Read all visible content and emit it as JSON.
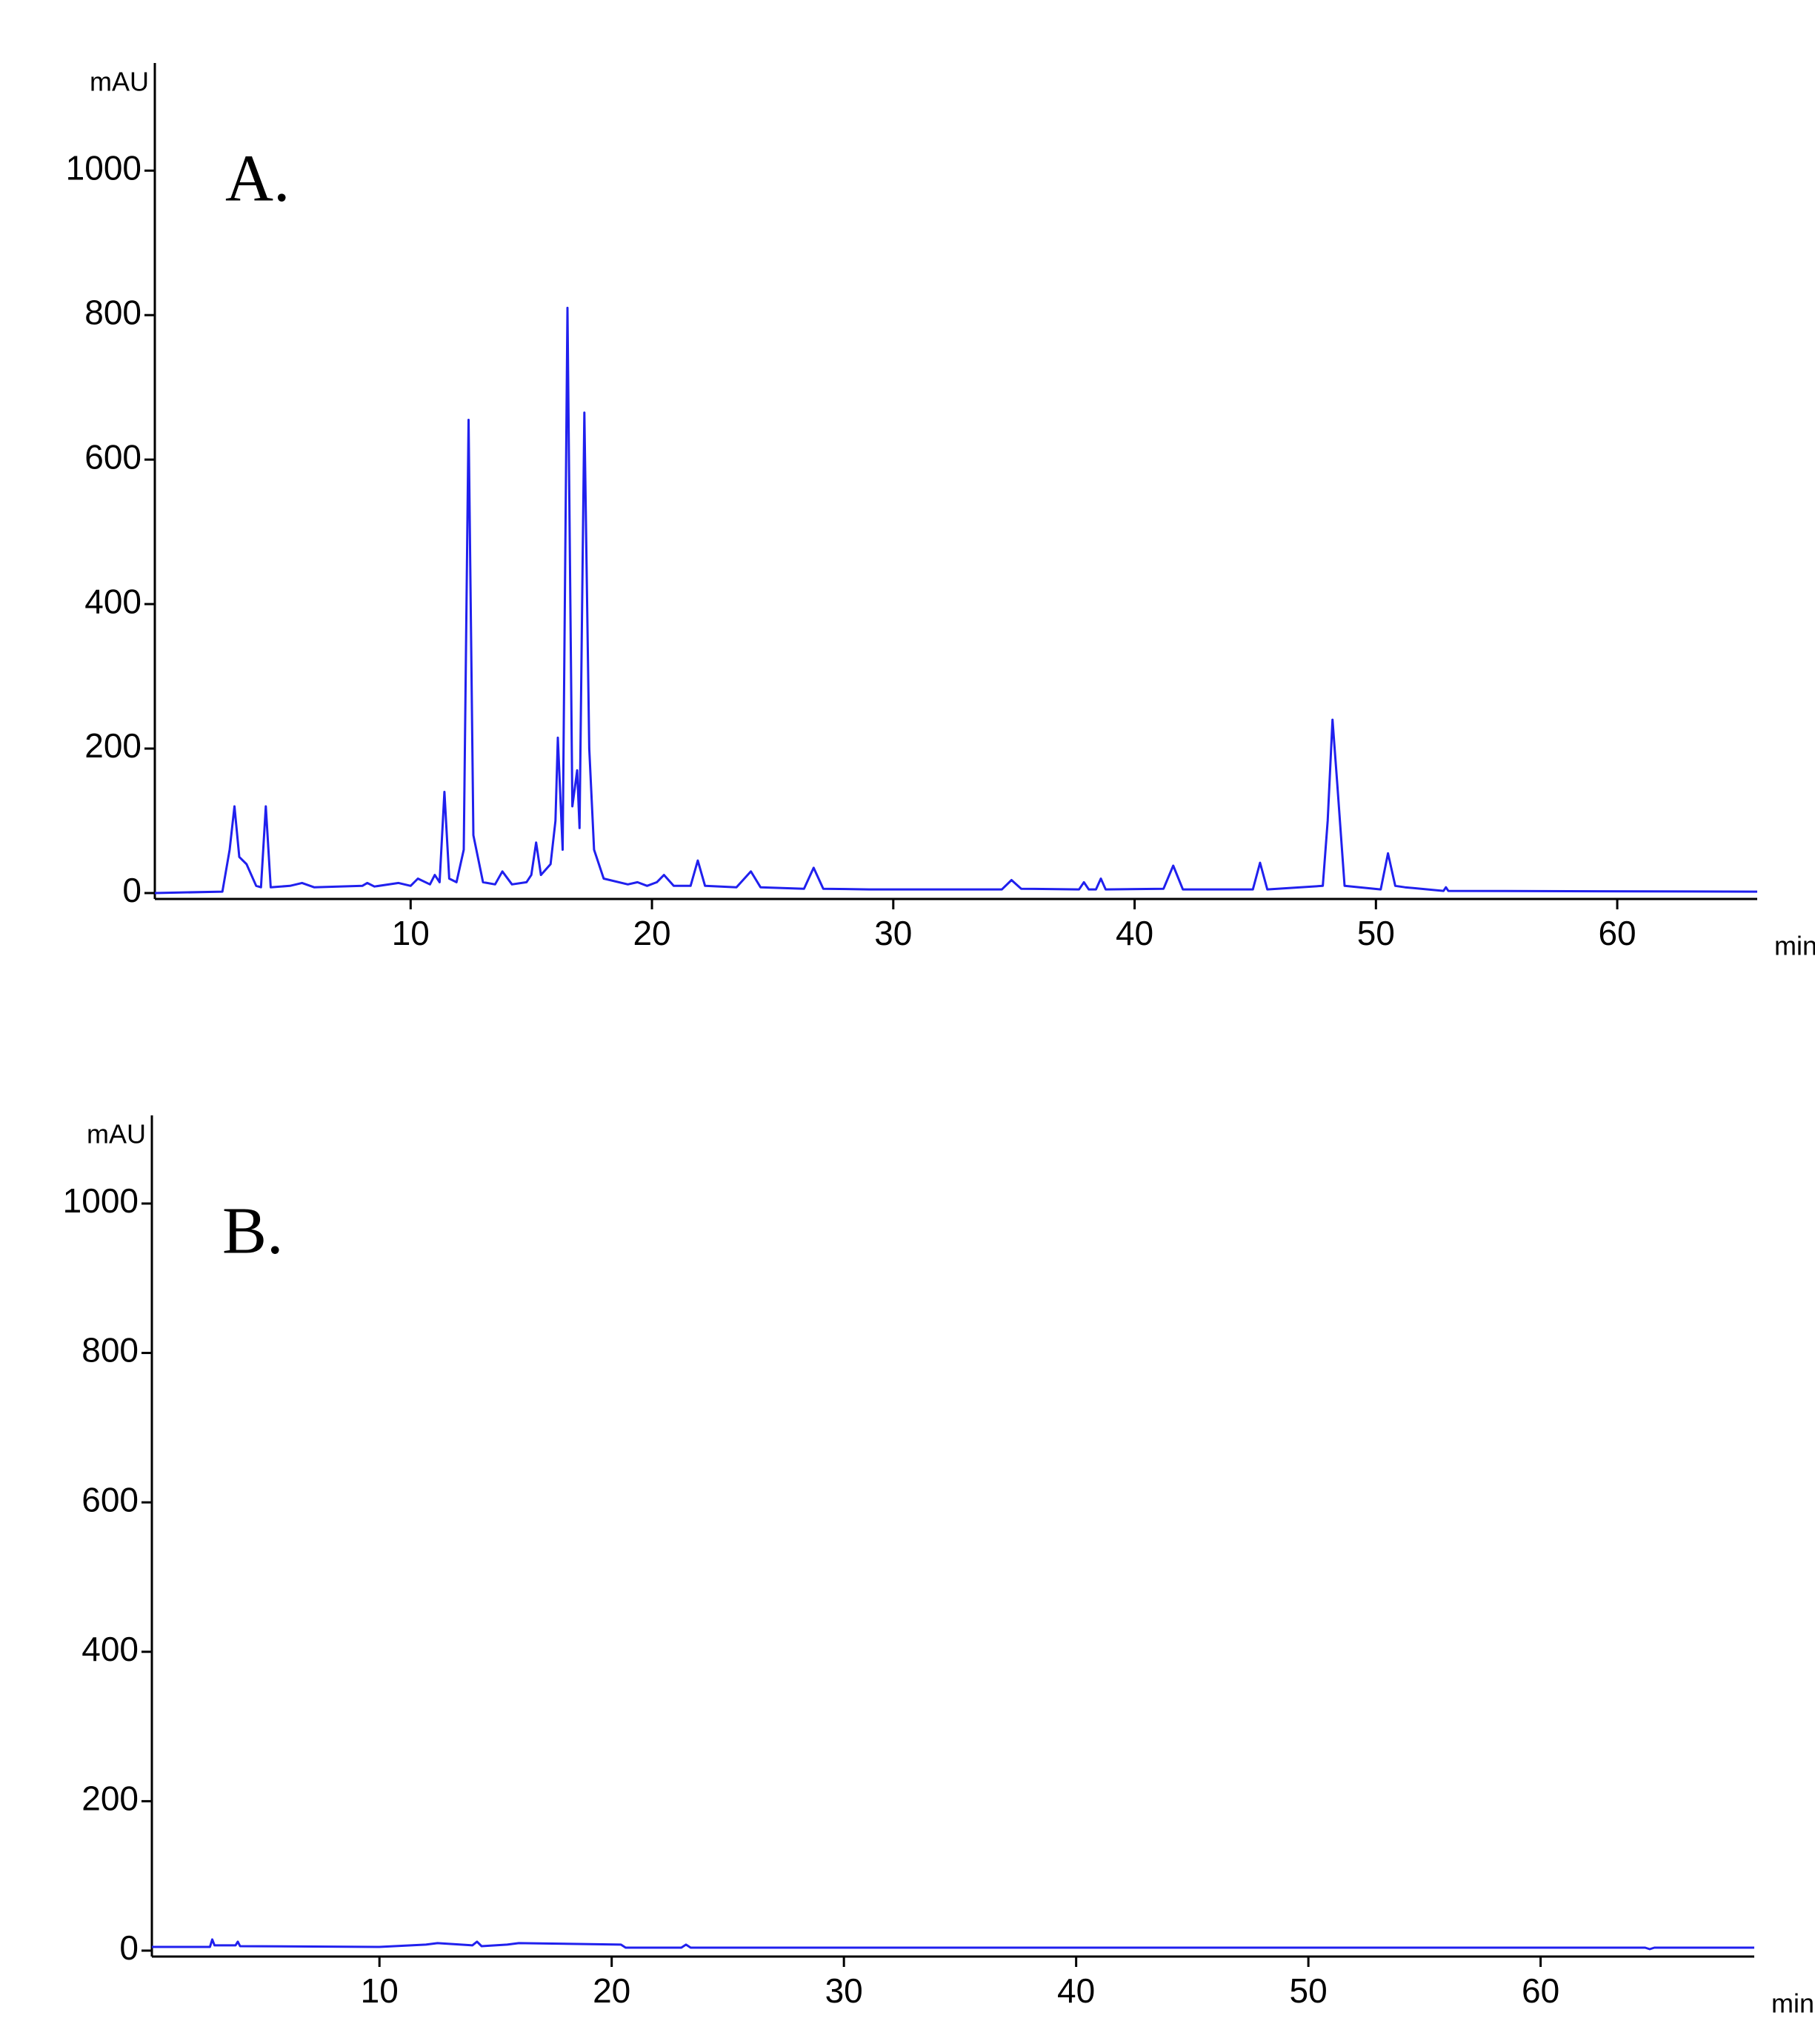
{
  "chart_data": [
    {
      "type": "line",
      "annotation": "A.",
      "ylabel": "mAU",
      "xlabel": "min",
      "color": "#2020ee",
      "xlim": [
        -0.6,
        65.8
      ],
      "ylim": [
        0,
        1149
      ],
      "xticks": [
        10,
        20,
        30,
        40,
        50,
        60
      ],
      "yticks": [
        0,
        200,
        400,
        600,
        800,
        1000
      ],
      "x": [
        -0.6,
        2.2,
        2.5,
        2.7,
        2.9,
        3.2,
        3.6,
        3.8,
        4.0,
        4.2,
        5.0,
        5.5,
        6.0,
        8.0,
        8.2,
        8.5,
        9.5,
        10.0,
        10.3,
        10.8,
        11.0,
        11.2,
        11.4,
        11.6,
        11.9,
        12.2,
        12.4,
        12.6,
        13.0,
        13.5,
        13.8,
        14.2,
        14.8,
        15.0,
        15.2,
        15.4,
        15.8,
        16.0,
        16.1,
        16.3,
        16.5,
        16.7,
        16.9,
        17.0,
        17.2,
        17.4,
        17.6,
        18.0,
        19.0,
        19.4,
        19.8,
        20.2,
        20.5,
        20.9,
        21.6,
        21.9,
        22.2,
        23.5,
        24.1,
        24.5,
        26.3,
        26.7,
        27.1,
        29.0,
        34.5,
        34.9,
        35.3,
        37.7,
        37.9,
        38.1,
        38.4,
        38.6,
        38.8,
        41.2,
        41.6,
        42.0,
        44.9,
        45.2,
        45.5,
        47.8,
        48.0,
        48.2,
        48.4,
        48.7,
        50.2,
        50.5,
        50.8,
        51.2,
        52.8,
        52.9,
        53.0,
        65.8
      ],
      "values": [
        0,
        2,
        60,
        120,
        50,
        40,
        10,
        8,
        120,
        8,
        10,
        14,
        8,
        10,
        14,
        9,
        14,
        10,
        20,
        12,
        25,
        15,
        140,
        20,
        15,
        60,
        655,
        80,
        15,
        12,
        30,
        12,
        15,
        25,
        70,
        25,
        40,
        100,
        215,
        60,
        810,
        120,
        170,
        90,
        665,
        200,
        60,
        20,
        12,
        15,
        10,
        15,
        25,
        10,
        10,
        45,
        10,
        8,
        30,
        8,
        6,
        35,
        6,
        5,
        5,
        18,
        6,
        5,
        15,
        5,
        5,
        20,
        5,
        6,
        38,
        5,
        5,
        42,
        5,
        10,
        100,
        240,
        150,
        10,
        5,
        55,
        10,
        8,
        3,
        8,
        3,
        2
      ]
    },
    {
      "type": "line",
      "annotation": "B.",
      "ylabel": "mAU",
      "xlabel": "min",
      "color": "#2020ee",
      "xlim": [
        0.2,
        69.2
      ],
      "ylim": [
        0,
        1118
      ],
      "xticks": [
        10,
        20,
        30,
        40,
        50,
        60
      ],
      "yticks": [
        0,
        200,
        400,
        600,
        800,
        1000
      ],
      "x": [
        0.2,
        2.7,
        2.8,
        2.9,
        3.8,
        3.9,
        4.0,
        10.0,
        12.0,
        12.5,
        14.0,
        14.2,
        14.4,
        15.5,
        16.0,
        20.4,
        20.6,
        23.0,
        23.2,
        23.4,
        64.5,
        64.7,
        64.9,
        69.2
      ],
      "values": [
        5,
        5,
        15,
        7,
        7,
        12,
        6,
        5,
        8,
        10,
        7,
        12,
        6,
        8,
        10,
        8,
        4,
        4,
        8,
        4,
        4,
        2,
        4,
        4
      ]
    }
  ]
}
